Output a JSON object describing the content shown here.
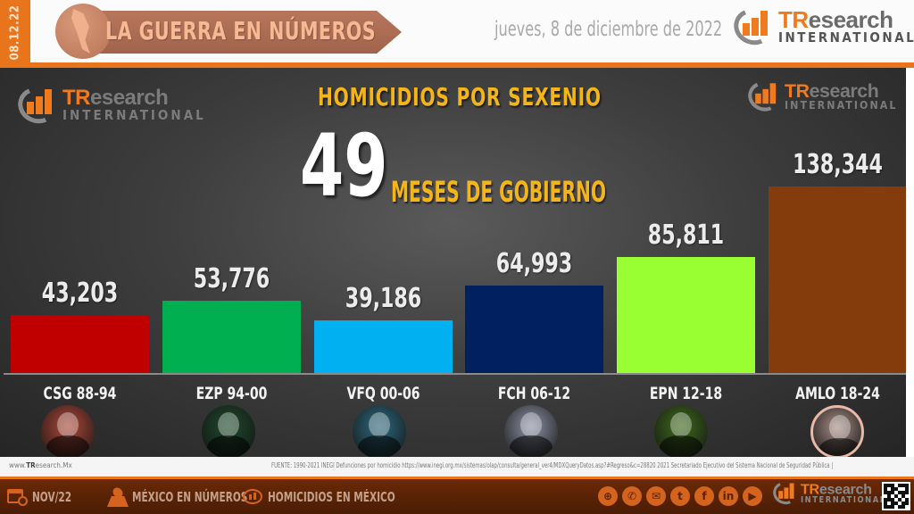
{
  "header": {
    "date_tab": "08.12.22",
    "banner_title": "LA GUERRA EN NÚMEROS",
    "date_text": "jueves, 8 de diciembre de 2022",
    "logo": {
      "brand_accent": "TR",
      "brand_rest": "esearch",
      "subtitle": "INTERNATIONAL"
    }
  },
  "panel": {
    "title": "HOMICIDIOS POR SEXENIO",
    "big_number": "49",
    "subtitle": "MESES DE GOBIERNO",
    "logo_left": {
      "brand_accent": "TR",
      "brand_rest": "esearch",
      "subtitle": "INTERNATIONAL"
    },
    "logo_right": {
      "brand_accent": "TR",
      "brand_rest": "esearch",
      "subtitle": "INTERNATIONAL"
    }
  },
  "chart_data": {
    "type": "bar",
    "title": "HOMICIDIOS POR SEXENIO",
    "subtitle": "49 MESES DE GOBIERNO",
    "xlabel": "",
    "ylabel": "",
    "categories": [
      "CSG 88-94",
      "EZP 94-00",
      "VFQ 00-06",
      "FCH 06-12",
      "EPN 12-18",
      "AMLO 18-24"
    ],
    "values": [
      43203,
      53776,
      39186,
      64993,
      85811,
      138344
    ],
    "value_labels": [
      "43,203",
      "53,776",
      "39,186",
      "64,993",
      "85,811",
      "138,344"
    ],
    "colors": [
      "#c00000",
      "#00b050",
      "#00b0f0",
      "#002060",
      "#99ff33",
      "#843c0c"
    ],
    "grid": false,
    "legend": "none",
    "ylim": [
      0,
      140000
    ]
  },
  "bars": [
    {
      "label": "CSG 88-94",
      "value_label": "43,203",
      "color": "#c00000",
      "avatar_tint": "#b04a3a"
    },
    {
      "label": "EZP 94-00",
      "value_label": "53,776",
      "color": "#00b050",
      "avatar_tint": "#1f4a2c"
    },
    {
      "label": "VFQ 00-06",
      "value_label": "39,186",
      "color": "#00b0f0",
      "avatar_tint": "#2e6b80"
    },
    {
      "label": "FCH 06-12",
      "value_label": "64,993",
      "color": "#002060",
      "avatar_tint": "#8f95a8"
    },
    {
      "label": "EPN 12-18",
      "value_label": "85,811",
      "color": "#99ff33",
      "avatar_tint": "#3f6b1d"
    },
    {
      "label": "AMLO 18-24",
      "value_label": "138,344",
      "color": "#843c0c",
      "avatar_tint": "#a88f86"
    }
  ],
  "source": {
    "site_prefix": "www.",
    "site_bold": "TR",
    "site_rest": "esearch.Mx",
    "text": "FUENTE: 1990-2021 INEGI Defunciones  por homicidio  https://www.inegi.org.mx/sistemas/olap/consulta/general_ver4/MDXQueryDatos.asp?#Regreso&c=28820   2021 Secretariado Ejecutivo del Sistema Nacional de Seguridad Pública |"
  },
  "footer": {
    "items": [
      {
        "label": "NOV/22",
        "icon": "calendar-clock-icon"
      },
      {
        "label": "MÉXICO EN NÚMEROS",
        "icon": "map-pin-icon"
      },
      {
        "label": "HOMICIDIOS EN MÉXICO",
        "icon": "chat-chart-icon"
      }
    ],
    "social": [
      {
        "name": "web",
        "glyph": "⊕"
      },
      {
        "name": "phone",
        "glyph": "✆"
      },
      {
        "name": "email",
        "glyph": "✉"
      },
      {
        "name": "twitter",
        "glyph": "t"
      },
      {
        "name": "facebook",
        "glyph": "f"
      },
      {
        "name": "linkedin",
        "glyph": "in"
      },
      {
        "name": "youtube",
        "glyph": "▶"
      }
    ],
    "logo": {
      "brand_accent": "TR",
      "brand_rest": "esearch",
      "subtitle": "INTERNATIONAL"
    }
  },
  "colors": {
    "accent_orange": "#e8741c",
    "title_yellow": "#f4b519",
    "footer_brown": "#5a2306"
  }
}
